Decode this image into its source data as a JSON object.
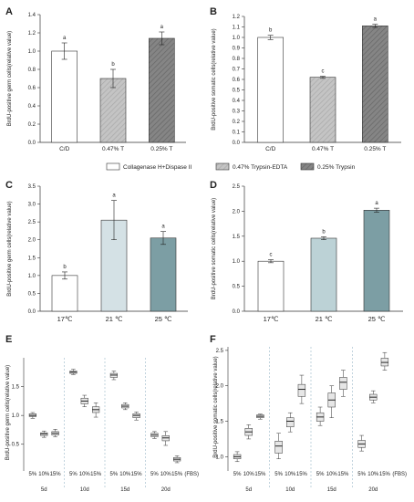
{
  "colors": {
    "white": "#ffffff",
    "light_gray": "#bfbfbf",
    "dark_gray": "#7f7f7f",
    "light_teal": "#d4e1e5",
    "mid_teal": "#bcd2d6",
    "dark_teal": "#7c9ea4",
    "box_fill": "#e6e6e6",
    "axis": "#333333",
    "divider": "#9ab7c8"
  },
  "legend": {
    "items": [
      {
        "label": "Collagenase H+Dispase II",
        "style": "white"
      },
      {
        "label": "0.47% Trypsin-EDTA",
        "style": "hatch-light"
      },
      {
        "label": "0.25% Trypsin",
        "style": "hatch-dark"
      }
    ]
  },
  "chart_data": [
    {
      "panel": "A",
      "type": "bar",
      "ylabel": "BrdU-positive germ cells(relative value)",
      "ylim": [
        0,
        1.4
      ],
      "yticks": [
        "0.0",
        "0.2",
        "0.4",
        "0.6",
        "0.8",
        "1.0",
        "1.2",
        "1.4"
      ],
      "categories": [
        "C/D",
        "0.47% T",
        "0.25% T"
      ],
      "values": [
        1.0,
        0.7,
        1.14
      ],
      "errors": [
        0.09,
        0.1,
        0.07
      ],
      "letters": [
        "a",
        "b",
        "a"
      ],
      "styles": [
        "white",
        "hatch-light",
        "hatch-dark"
      ]
    },
    {
      "panel": "B",
      "type": "bar",
      "ylabel": "BrdU-positive somatic cells(relative value)",
      "ylim": [
        0,
        1.2
      ],
      "yticks": [
        "0.0",
        "0.1",
        "0.2",
        "0.3",
        "0.4",
        "0.5",
        "0.6",
        "0.7",
        "0.8",
        "0.9",
        "1.0",
        "1.1",
        "1.2"
      ],
      "categories": [
        "C/D",
        "0.47% T",
        "0.25% T"
      ],
      "values": [
        1.0,
        0.62,
        1.11
      ],
      "errors": [
        0.02,
        0.01,
        0.015
      ],
      "letters": [
        "b",
        "c",
        "a"
      ],
      "styles": [
        "white",
        "hatch-light",
        "hatch-dark"
      ]
    },
    {
      "panel": "C",
      "type": "bar",
      "ylabel": "BrdU-positive germ cells(relative value)",
      "ylim": [
        0,
        3.5
      ],
      "yticks": [
        "0.0",
        "0.5",
        "1.0",
        "1.5",
        "2.0",
        "2.5",
        "3.0",
        "3.5"
      ],
      "categories": [
        "17℃",
        "21 ℃",
        "25 ℃"
      ],
      "values": [
        1.0,
        2.55,
        2.05
      ],
      "errors": [
        0.1,
        0.55,
        0.18
      ],
      "letters": [
        "b",
        "a",
        "a"
      ],
      "styles": [
        "white",
        "light-teal",
        "dark-teal"
      ]
    },
    {
      "panel": "D",
      "type": "bar",
      "ylabel": "BrdU-positive somatic cells(relative value)",
      "ylim": [
        0,
        2.5
      ],
      "yticks": [
        "0.0",
        "0.5",
        "1.0",
        "1.5",
        "2.0",
        "2.5"
      ],
      "categories": [
        "17℃",
        "21 ℃",
        "25 ℃"
      ],
      "values": [
        1.0,
        1.46,
        2.02
      ],
      "errors": [
        0.03,
        0.03,
        0.04
      ],
      "letters": [
        "c",
        "b",
        "a"
      ],
      "styles": [
        "white",
        "mid-teal",
        "dark-teal"
      ]
    },
    {
      "panel": "E",
      "type": "box",
      "ylabel": "BrdU-positive germ cells(relative value)",
      "ylim": [
        0.1,
        2.0
      ],
      "yticks": [
        "0.5",
        "1.0",
        "1.5"
      ],
      "groups": [
        "5d",
        "10d",
        "15d",
        "20d"
      ],
      "subcategories": [
        "5%",
        "10%",
        "15%"
      ],
      "xunit": "(FBS)",
      "boxes": [
        [
          [
            0.95,
            0.98,
            1.0,
            1.03,
            1.05
          ],
          [
            0.62,
            0.65,
            0.68,
            0.7,
            0.73
          ],
          [
            0.63,
            0.66,
            0.69,
            0.72,
            0.76
          ]
        ],
        [
          [
            1.71,
            1.73,
            1.75,
            1.77,
            1.8
          ],
          [
            1.15,
            1.2,
            1.25,
            1.3,
            1.35
          ],
          [
            0.97,
            1.05,
            1.1,
            1.15,
            1.22
          ]
        ],
        [
          [
            1.62,
            1.66,
            1.7,
            1.73,
            1.77
          ],
          [
            1.1,
            1.13,
            1.16,
            1.19,
            1.22
          ],
          [
            0.92,
            0.96,
            1.0,
            1.03,
            1.06
          ]
        ],
        [
          [
            0.6,
            0.63,
            0.66,
            0.69,
            0.72
          ],
          [
            0.48,
            0.56,
            0.61,
            0.65,
            0.72
          ],
          [
            0.18,
            0.21,
            0.24,
            0.27,
            0.3
          ]
        ]
      ]
    },
    {
      "panel": "F",
      "type": "box",
      "ylabel": "BrdU-positive somatic cells(relative value)",
      "ylim": [
        0.85,
        2.55
      ],
      "yticks": [
        "1.0",
        "1.5",
        "2.0",
        "2.5"
      ],
      "groups": [
        "5d",
        "10d",
        "15d",
        "20d"
      ],
      "subcategories": [
        "5%",
        "10%",
        "15%"
      ],
      "xunit": "(FBS)",
      "boxes": [
        [
          [
            0.93,
            0.97,
            1.0,
            1.03,
            1.07
          ],
          [
            1.25,
            1.3,
            1.35,
            1.4,
            1.45
          ],
          [
            1.53,
            1.55,
            1.57,
            1.59,
            1.6
          ]
        ],
        [
          [
            0.97,
            1.05,
            1.15,
            1.22,
            1.33
          ],
          [
            1.35,
            1.42,
            1.5,
            1.55,
            1.62
          ],
          [
            1.75,
            1.85,
            1.95,
            2.02,
            2.15
          ]
        ],
        [
          [
            1.44,
            1.5,
            1.56,
            1.62,
            1.7
          ],
          [
            1.55,
            1.7,
            1.8,
            1.9,
            2.0
          ],
          [
            1.85,
            1.95,
            2.05,
            2.12,
            2.22
          ]
        ],
        [
          [
            1.08,
            1.13,
            1.18,
            1.23,
            1.3
          ],
          [
            1.76,
            1.8,
            1.84,
            1.88,
            1.93
          ],
          [
            2.22,
            2.28,
            2.33,
            2.39,
            2.47
          ]
        ]
      ]
    }
  ]
}
